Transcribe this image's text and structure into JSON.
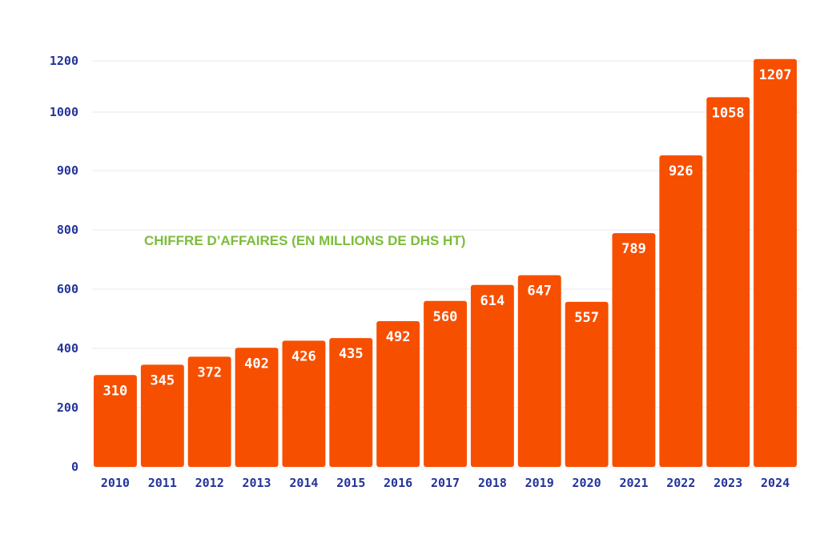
{
  "chart_data": {
    "type": "bar",
    "title": "CHIFFRE D’AFFAIRES (EN MILLIONS DE DHS HT)",
    "categories": [
      "2010",
      "2011",
      "2012",
      "2013",
      "2014",
      "2015",
      "2016",
      "2017",
      "2018",
      "2019",
      "2020",
      "2021",
      "2022",
      "2023",
      "2024"
    ],
    "values": [
      310,
      345,
      372,
      402,
      426,
      435,
      492,
      560,
      614,
      647,
      557,
      789,
      926,
      1058,
      1207
    ],
    "y_ticks": [
      "0",
      "200",
      "400",
      "600",
      "800",
      "900",
      "1000",
      "1200"
    ],
    "y_tick_values": [
      0,
      200,
      400,
      600,
      800,
      900,
      1000,
      1200
    ],
    "grid": true,
    "bar_color": "#f74f00",
    "title_color": "#7cbd3a",
    "axis_text_color": "#23349a"
  }
}
